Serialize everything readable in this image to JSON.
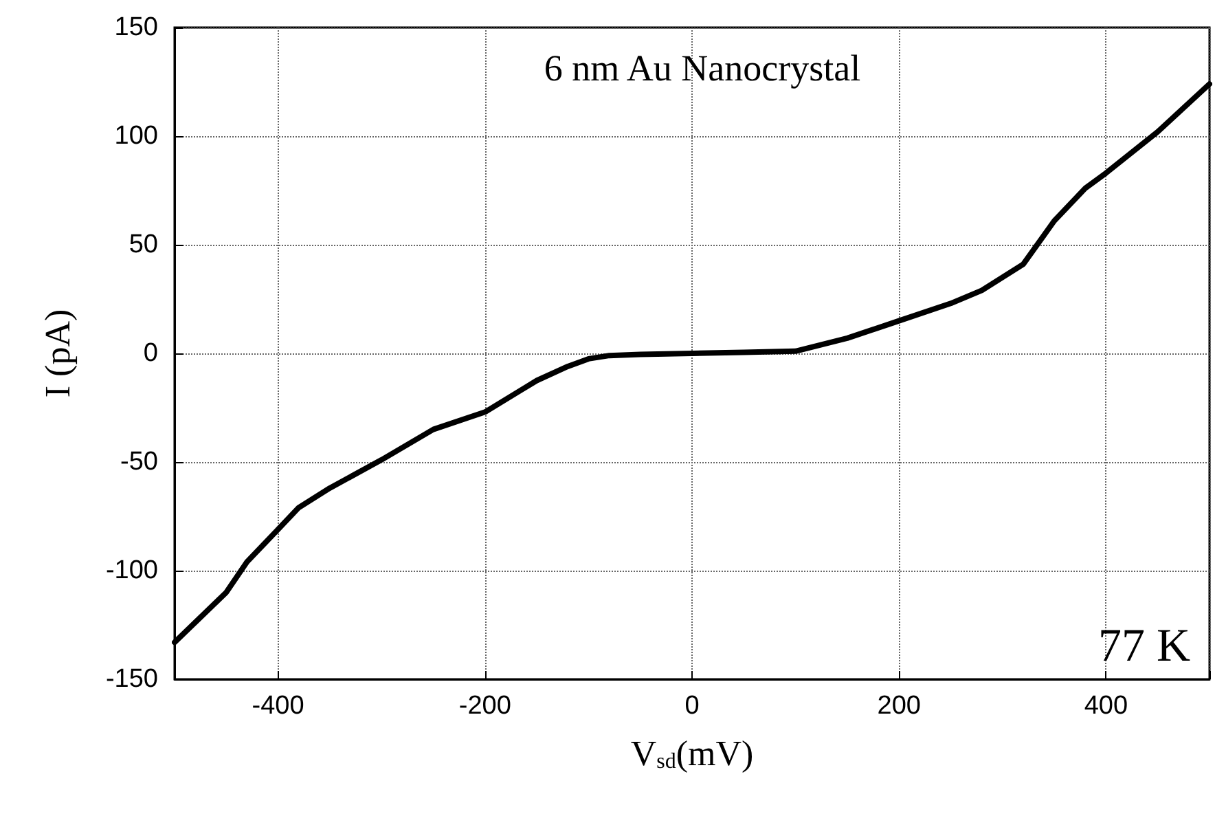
{
  "chart_data": {
    "type": "line",
    "xlabel": "V$_{sd}$(mV)",
    "ylabel": "I (pA)",
    "annotations": [
      "6 nm Au Nanocrystal",
      "77 K"
    ],
    "xlim": [
      -500,
      500
    ],
    "xticks": [
      {
        "value": -500,
        "label": null
      },
      -400,
      -200,
      0,
      200,
      400,
      {
        "value": 500,
        "label": null
      }
    ],
    "ylim": [
      -150,
      150
    ],
    "yticks": [
      -150,
      -100,
      -50,
      0,
      50,
      100,
      150
    ],
    "grid": true,
    "line_style": "solid",
    "marker": "none",
    "series": [
      {
        "color": "#000000",
        "x": [
          -500,
          -450,
          -430,
          -400,
          -380,
          -350,
          -300,
          -250,
          -200,
          -150,
          -120,
          -100,
          -80,
          -50,
          0,
          50,
          100,
          150,
          200,
          250,
          280,
          300,
          320,
          350,
          380,
          400,
          450,
          500
        ],
        "values": [
          -133,
          -110,
          -96,
          -81,
          -71,
          -62,
          -49,
          -35,
          -27,
          -12.5,
          -6,
          -2.5,
          -1,
          -0.5,
          0,
          0.5,
          1,
          7,
          15,
          23,
          29,
          35,
          41,
          61,
          76,
          83,
          102,
          124
        ]
      }
    ]
  }
}
